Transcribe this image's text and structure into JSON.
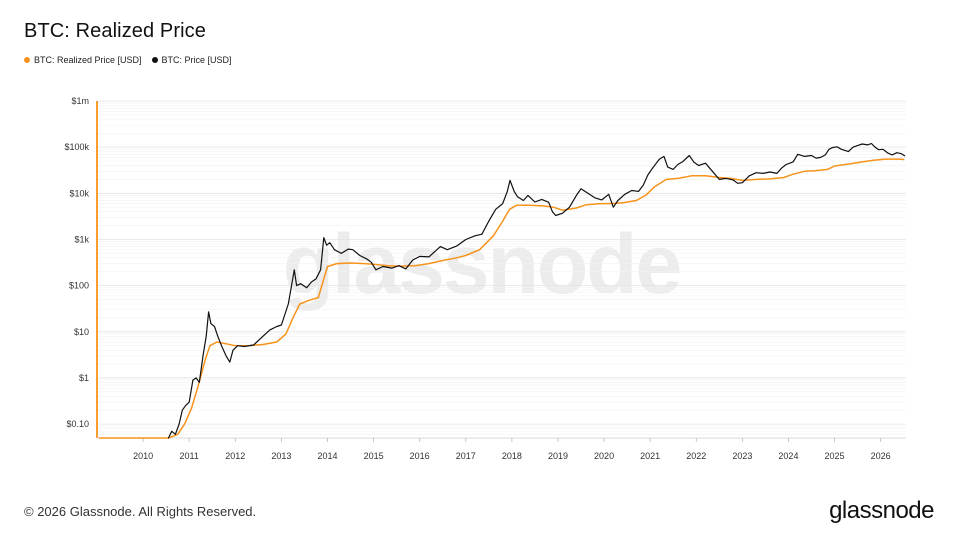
{
  "page": {
    "title": "BTC: Realized Price",
    "footer": "© 2026 Glassnode. All Rights Reserved.",
    "brand": "glassnode",
    "watermark": "glassnode"
  },
  "chart_data": {
    "type": "line",
    "title": "BTC: Realized Price",
    "y_scale": "log",
    "ylim": [
      0.05,
      1000000
    ],
    "xlim": [
      2009.0,
      2026.55
    ],
    "grid": true,
    "legend_position": "top-left",
    "y_ticks": [
      {
        "value": 0.1,
        "label": "$0.10"
      },
      {
        "value": 1,
        "label": "$1"
      },
      {
        "value": 10,
        "label": "$10"
      },
      {
        "value": 100,
        "label": "$100"
      },
      {
        "value": 1000,
        "label": "$1k"
      },
      {
        "value": 10000,
        "label": "$10k"
      },
      {
        "value": 100000,
        "label": "$100k"
      },
      {
        "value": 1000000,
        "label": "$1m"
      }
    ],
    "x_ticks": [
      {
        "value": 2010,
        "label": "2010"
      },
      {
        "value": 2011,
        "label": "2011"
      },
      {
        "value": 2012,
        "label": "2012"
      },
      {
        "value": 2013,
        "label": "2013"
      },
      {
        "value": 2014,
        "label": "2014"
      },
      {
        "value": 2015,
        "label": "2015"
      },
      {
        "value": 2016,
        "label": "2016"
      },
      {
        "value": 2017,
        "label": "2017"
      },
      {
        "value": 2018,
        "label": "2018"
      },
      {
        "value": 2019,
        "label": "2019"
      },
      {
        "value": 2020,
        "label": "2020"
      },
      {
        "value": 2021,
        "label": "2021"
      },
      {
        "value": 2022,
        "label": "2022"
      },
      {
        "value": 2023,
        "label": "2023"
      },
      {
        "value": 2024,
        "label": "2024"
      },
      {
        "value": 2025,
        "label": "2025"
      },
      {
        "value": 2026,
        "label": "2026"
      }
    ],
    "series": [
      {
        "name": "BTC: Realized Price [USD]",
        "color": "#f7931a",
        "points": [
          [
            2009.05,
            0.05
          ],
          [
            2010.55,
            0.05
          ],
          [
            2010.75,
            0.06
          ],
          [
            2010.9,
            0.1
          ],
          [
            2011.05,
            0.22
          ],
          [
            2011.2,
            0.7
          ],
          [
            2011.35,
            2.5
          ],
          [
            2011.45,
            5
          ],
          [
            2011.6,
            6
          ],
          [
            2011.8,
            5.5
          ],
          [
            2012.0,
            5
          ],
          [
            2012.3,
            5
          ],
          [
            2012.6,
            5.3
          ],
          [
            2012.9,
            6
          ],
          [
            2013.1,
            9
          ],
          [
            2013.25,
            20
          ],
          [
            2013.4,
            40
          ],
          [
            2013.6,
            48
          ],
          [
            2013.8,
            55
          ],
          [
            2013.9,
            120
          ],
          [
            2014.0,
            260
          ],
          [
            2014.2,
            300
          ],
          [
            2014.5,
            310
          ],
          [
            2014.8,
            300
          ],
          [
            2015.0,
            290
          ],
          [
            2015.3,
            270
          ],
          [
            2015.6,
            265
          ],
          [
            2015.9,
            270
          ],
          [
            2016.2,
            300
          ],
          [
            2016.5,
            350
          ],
          [
            2016.8,
            400
          ],
          [
            2017.0,
            450
          ],
          [
            2017.3,
            600
          ],
          [
            2017.6,
            1200
          ],
          [
            2017.8,
            2500
          ],
          [
            2017.95,
            4500
          ],
          [
            2018.1,
            5500
          ],
          [
            2018.4,
            5500
          ],
          [
            2018.7,
            5300
          ],
          [
            2018.9,
            5000
          ],
          [
            2019.1,
            4300
          ],
          [
            2019.4,
            4800
          ],
          [
            2019.6,
            5600
          ],
          [
            2019.9,
            6000
          ],
          [
            2020.1,
            6000
          ],
          [
            2020.4,
            6200
          ],
          [
            2020.7,
            7000
          ],
          [
            2020.9,
            9000
          ],
          [
            2021.1,
            14000
          ],
          [
            2021.35,
            20000
          ],
          [
            2021.6,
            21000
          ],
          [
            2021.9,
            24000
          ],
          [
            2022.2,
            24000
          ],
          [
            2022.5,
            22000
          ],
          [
            2022.75,
            21000
          ],
          [
            2023.0,
            19000
          ],
          [
            2023.3,
            20000
          ],
          [
            2023.6,
            20500
          ],
          [
            2023.9,
            22000
          ],
          [
            2024.1,
            26000
          ],
          [
            2024.35,
            30000
          ],
          [
            2024.6,
            31000
          ],
          [
            2024.85,
            33000
          ],
          [
            2025.0,
            39000
          ],
          [
            2025.3,
            43000
          ],
          [
            2025.6,
            48000
          ],
          [
            2025.85,
            52000
          ],
          [
            2026.1,
            55000
          ],
          [
            2026.4,
            55000
          ],
          [
            2026.5,
            54000
          ]
        ]
      },
      {
        "name": "BTC: Price [USD]",
        "color": "#111111",
        "points": [
          [
            2010.55,
            0.05
          ],
          [
            2010.62,
            0.07
          ],
          [
            2010.7,
            0.06
          ],
          [
            2010.78,
            0.1
          ],
          [
            2010.85,
            0.2
          ],
          [
            2010.92,
            0.25
          ],
          [
            2011.0,
            0.3
          ],
          [
            2011.08,
            0.9
          ],
          [
            2011.15,
            1.0
          ],
          [
            2011.22,
            0.8
          ],
          [
            2011.3,
            3
          ],
          [
            2011.37,
            8
          ],
          [
            2011.42,
            27
          ],
          [
            2011.47,
            15
          ],
          [
            2011.55,
            13
          ],
          [
            2011.62,
            8
          ],
          [
            2011.7,
            5
          ],
          [
            2011.8,
            3
          ],
          [
            2011.88,
            2.2
          ],
          [
            2011.95,
            4
          ],
          [
            2012.05,
            5
          ],
          [
            2012.2,
            4.8
          ],
          [
            2012.4,
            5.2
          ],
          [
            2012.6,
            8
          ],
          [
            2012.75,
            11
          ],
          [
            2012.9,
            13
          ],
          [
            2013.0,
            14
          ],
          [
            2013.15,
            40
          ],
          [
            2013.28,
            220
          ],
          [
            2013.33,
            100
          ],
          [
            2013.42,
            110
          ],
          [
            2013.55,
            90
          ],
          [
            2013.65,
            120
          ],
          [
            2013.75,
            140
          ],
          [
            2013.85,
            220
          ],
          [
            2013.92,
            1100
          ],
          [
            2013.98,
            750
          ],
          [
            2014.05,
            850
          ],
          [
            2014.15,
            600
          ],
          [
            2014.3,
            500
          ],
          [
            2014.45,
            620
          ],
          [
            2014.55,
            600
          ],
          [
            2014.7,
            450
          ],
          [
            2014.85,
            380
          ],
          [
            2014.95,
            320
          ],
          [
            2015.05,
            220
          ],
          [
            2015.2,
            260
          ],
          [
            2015.4,
            240
          ],
          [
            2015.55,
            270
          ],
          [
            2015.7,
            230
          ],
          [
            2015.85,
            360
          ],
          [
            2016.0,
            430
          ],
          [
            2016.2,
            420
          ],
          [
            2016.45,
            700
          ],
          [
            2016.6,
            600
          ],
          [
            2016.8,
            720
          ],
          [
            2017.0,
            1000
          ],
          [
            2017.2,
            1200
          ],
          [
            2017.35,
            1300
          ],
          [
            2017.5,
            2500
          ],
          [
            2017.65,
            4500
          ],
          [
            2017.8,
            6000
          ],
          [
            2017.9,
            11000
          ],
          [
            2017.96,
            19000
          ],
          [
            2018.05,
            11000
          ],
          [
            2018.12,
            8500
          ],
          [
            2018.25,
            7000
          ],
          [
            2018.35,
            9000
          ],
          [
            2018.5,
            6500
          ],
          [
            2018.65,
            7400
          ],
          [
            2018.8,
            6400
          ],
          [
            2018.88,
            4000
          ],
          [
            2018.95,
            3300
          ],
          [
            2019.1,
            3700
          ],
          [
            2019.25,
            5000
          ],
          [
            2019.4,
            9000
          ],
          [
            2019.5,
            12500
          ],
          [
            2019.65,
            10000
          ],
          [
            2019.8,
            8000
          ],
          [
            2019.95,
            7200
          ],
          [
            2020.1,
            9500
          ],
          [
            2020.2,
            5000
          ],
          [
            2020.3,
            7000
          ],
          [
            2020.45,
            9500
          ],
          [
            2020.6,
            11500
          ],
          [
            2020.75,
            11000
          ],
          [
            2020.85,
            15000
          ],
          [
            2020.95,
            25000
          ],
          [
            2021.05,
            35000
          ],
          [
            2021.2,
            55000
          ],
          [
            2021.3,
            63000
          ],
          [
            2021.38,
            37000
          ],
          [
            2021.5,
            33000
          ],
          [
            2021.6,
            42000
          ],
          [
            2021.7,
            48000
          ],
          [
            2021.85,
            66000
          ],
          [
            2021.95,
            47000
          ],
          [
            2022.05,
            40000
          ],
          [
            2022.2,
            45000
          ],
          [
            2022.35,
            30000
          ],
          [
            2022.5,
            20000
          ],
          [
            2022.65,
            21000
          ],
          [
            2022.8,
            19500
          ],
          [
            2022.9,
            16500
          ],
          [
            2023.0,
            17000
          ],
          [
            2023.15,
            24000
          ],
          [
            2023.3,
            28000
          ],
          [
            2023.45,
            27000
          ],
          [
            2023.6,
            29000
          ],
          [
            2023.75,
            27000
          ],
          [
            2023.85,
            35000
          ],
          [
            2023.95,
            42000
          ],
          [
            2024.1,
            48000
          ],
          [
            2024.2,
            70000
          ],
          [
            2024.35,
            63000
          ],
          [
            2024.5,
            66000
          ],
          [
            2024.6,
            58000
          ],
          [
            2024.7,
            60000
          ],
          [
            2024.8,
            68000
          ],
          [
            2024.88,
            90000
          ],
          [
            2024.95,
            98000
          ],
          [
            2025.05,
            102000
          ],
          [
            2025.15,
            90000
          ],
          [
            2025.3,
            80000
          ],
          [
            2025.4,
            100000
          ],
          [
            2025.5,
            108000
          ],
          [
            2025.6,
            117000
          ],
          [
            2025.72,
            112000
          ],
          [
            2025.8,
            120000
          ],
          [
            2025.88,
            100000
          ],
          [
            2025.96,
            88000
          ],
          [
            2026.05,
            90000
          ],
          [
            2026.15,
            75000
          ],
          [
            2026.25,
            68000
          ],
          [
            2026.35,
            76000
          ],
          [
            2026.45,
            72000
          ],
          [
            2026.52,
            65000
          ]
        ]
      }
    ]
  }
}
